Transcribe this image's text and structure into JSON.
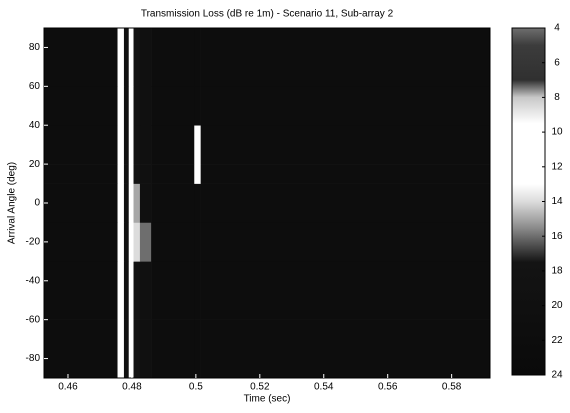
{
  "chart_data": {
    "type": "heatmap",
    "title": "Transmission Loss (dB re 1m) - Scenario 11, Sub-array 2",
    "x_label": "Time (sec)",
    "y_label": "Arrival Angle (deg)",
    "xlim": [
      0.4525,
      0.592
    ],
    "xticks": [
      0.46,
      0.48,
      0.5,
      0.52,
      0.54,
      0.56,
      0.58
    ],
    "ylim": [
      -90,
      90
    ],
    "yticks": [
      -80,
      -60,
      -40,
      -20,
      0,
      20,
      40,
      60,
      80
    ],
    "clim": [
      4,
      24
    ],
    "cticks": [
      4,
      6,
      8,
      10,
      12,
      14,
      16,
      18,
      20,
      22,
      24
    ],
    "colormap": [
      {
        "value": 4,
        "color": "#6e6e6e"
      },
      {
        "value": 5,
        "color": "#3c3c3c"
      },
      {
        "value": 7,
        "color": "#303030"
      },
      {
        "value": 8,
        "color": "#c8c8c8"
      },
      {
        "value": 9.5,
        "color": "#ffffff"
      },
      {
        "value": 13,
        "color": "#ffffff"
      },
      {
        "value": 14,
        "color": "#dcdcdc"
      },
      {
        "value": 15.5,
        "color": "#8c8c8c"
      },
      {
        "value": 16.5,
        "color": "#505050"
      },
      {
        "value": 17.5,
        "color": "#141414"
      },
      {
        "value": 24,
        "color": "#0a0a0a"
      }
    ],
    "x_edges": [
      0.4525,
      0.4755,
      0.4775,
      0.479,
      0.4805,
      0.4825,
      0.486,
      0.4995,
      0.5015,
      0.592
    ],
    "y_edges": [
      -90,
      -60,
      -30,
      -10,
      10,
      20,
      40,
      60,
      90
    ],
    "z": [
      [
        22,
        11,
        20,
        11,
        18,
        20,
        22,
        22,
        22
      ],
      [
        22,
        11,
        20,
        11,
        18,
        20,
        22,
        22,
        22
      ],
      [
        22,
        11,
        20,
        11,
        14,
        16,
        22,
        22,
        22
      ],
      [
        22,
        11,
        20,
        11,
        15,
        20,
        22,
        22,
        22
      ],
      [
        22,
        11,
        20,
        11,
        18,
        20,
        22,
        12,
        22
      ],
      [
        22,
        11,
        20,
        11,
        18,
        20,
        22,
        11,
        22
      ],
      [
        22,
        11,
        20,
        11,
        18,
        20,
        22,
        22,
        22
      ],
      [
        22,
        11,
        20,
        11,
        18,
        20,
        22,
        22,
        22
      ]
    ]
  }
}
